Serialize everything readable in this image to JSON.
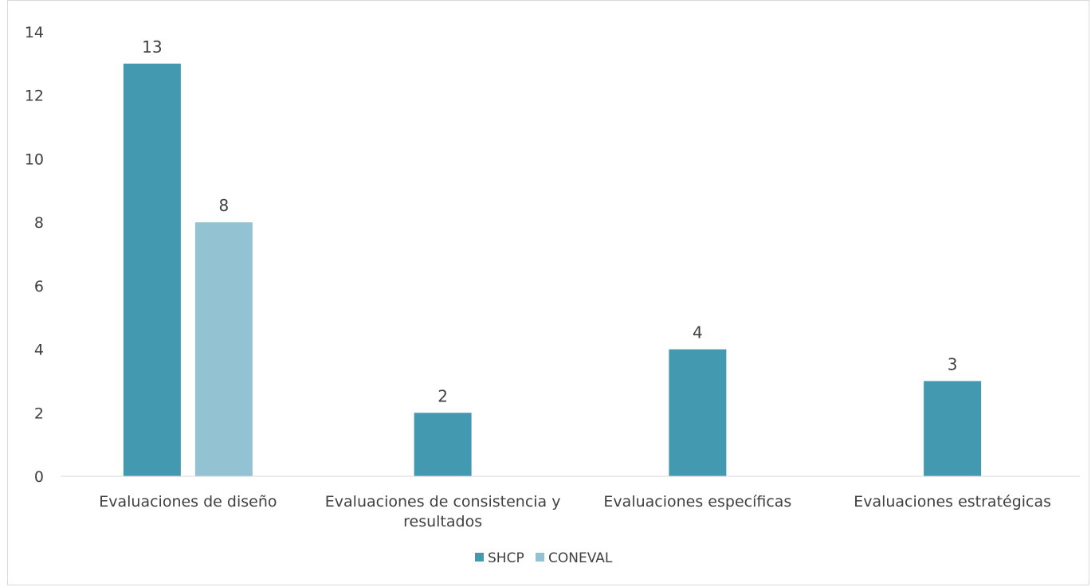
{
  "chart_data": {
    "type": "bar",
    "categories": [
      [
        "Evaluaciones de diseño"
      ],
      [
        "Evaluaciones de consistencia y",
        "resultados"
      ],
      [
        "Evaluaciones específicas"
      ],
      [
        "Evaluaciones estratégicas"
      ]
    ],
    "series": [
      {
        "name": "SHCP",
        "values": [
          13,
          2,
          4,
          3
        ],
        "color": "#4399b0"
      },
      {
        "name": "CONEVAL",
        "values": [
          8,
          null,
          null,
          null
        ],
        "color": "#93c3d3"
      }
    ],
    "ylim": [
      0,
      14
    ],
    "yticks": [
      0,
      2,
      4,
      6,
      8,
      10,
      12,
      14
    ],
    "grid": false,
    "legend_position": "bottom-center"
  }
}
